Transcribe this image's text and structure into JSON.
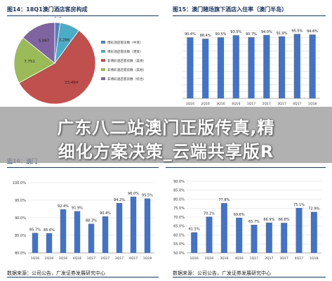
{
  "overlay": {
    "line1": "广东八二站澳门正版传真,精",
    "line2": "细化方案决策_云端共享版R"
  },
  "sources": [
    "数据来源：公司公告，广发证券发展研究中心",
    "数据来源：公司公告，广发证券发展研究中心"
  ],
  "chart_data": [
    {
      "type": "pie",
      "title": "图14：18Q1澳门酒店客房构成",
      "categories": [
        "",
        "",
        "",
        "",
        ""
      ],
      "values": [
        873,
        3286,
        23464,
        7751,
        5867
      ],
      "value_labels": [
        "873",
        "3,286",
        "23,464",
        "7,751",
        "5,867"
      ],
      "colors": [
        "#4f81bd",
        "#4bacc6",
        "#c0504d",
        "#9bbb59",
        "#8064a2"
      ],
      "legend": {
        "placement": "right",
        "entries": [
          "博彩酒店客房数（中资）",
          "博彩酒店客房数（港资）",
          "非博彩酒店客房数（美资）",
          "非博彩酒店客房数（其他）",
          "非博彩酒店客房数（综合）"
        ]
      }
    },
    {
      "type": "bar",
      "title": "图15：澳门赌场旗下酒店入住率（澳门半岛）",
      "categories": [
        "1Q16",
        "2Q16",
        "3Q16",
        "4Q16",
        "1Q17",
        "2Q17",
        "3Q17",
        "4Q17",
        "1Q18"
      ],
      "values": [
        90.4,
        88.4,
        90.5,
        93.5,
        90.7,
        94.0,
        91.9,
        95.5,
        94.6
      ],
      "value_labels": [
        "90.4%",
        "88.4%",
        "90.5%",
        "93.5%",
        "90.7%",
        "94.0%",
        "91.9%",
        "95.5%",
        "94.6%"
      ],
      "ylim": [
        0,
        100
      ],
      "ytick_labels": [],
      "color": "#4472c4",
      "grid": true
    },
    {
      "type": "bar",
      "title": "图16：澳门",
      "categories": [
        "1Q16",
        "2Q16",
        "3Q16",
        "4Q16",
        "1Q17",
        "2Q17",
        "3Q17",
        "4Q17",
        "1Q18"
      ],
      "values": [
        85.7,
        85.6,
        92.4,
        91.9,
        88.3,
        90.4,
        94.2,
        96.0,
        95.5
      ],
      "value_labels": [
        "85.7%",
        "85.6%",
        "92.4%",
        "91.9%",
        "88.3%",
        "90.4%",
        "94.2%",
        "96.0%",
        "95.5%"
      ],
      "ylim": [
        80,
        100
      ],
      "ytick_labels": [
        "80.0%",
        "85.0%",
        "90.0%",
        "95.0%",
        "100.0%"
      ],
      "color": "#4472c4",
      "grid": true
    },
    {
      "type": "bar",
      "title": "",
      "categories": [
        "1Q16",
        "2Q16",
        "3Q16",
        "4Q16",
        "1Q17",
        "2Q17",
        "3Q17",
        "4Q17",
        "1Q18"
      ],
      "values": [
        61.5,
        70.2,
        77.8,
        69.6,
        65.7,
        66.9,
        66.8,
        75.1,
        72.9
      ],
      "value_labels": [
        "61.5%",
        "70.2%",
        "77.8%",
        "69.6%",
        "65.7%",
        "66.9%",
        "66.8%",
        "75.1%",
        "72.9%"
      ],
      "ylim": [
        50,
        90
      ],
      "ytick_labels": [
        "50.0%",
        "55.0%",
        "60.0%",
        "65.0%",
        "70.0%",
        "75.0%",
        "80.0%",
        "85.0%",
        "90.0%"
      ],
      "color": "#4472c4",
      "grid": true
    }
  ]
}
